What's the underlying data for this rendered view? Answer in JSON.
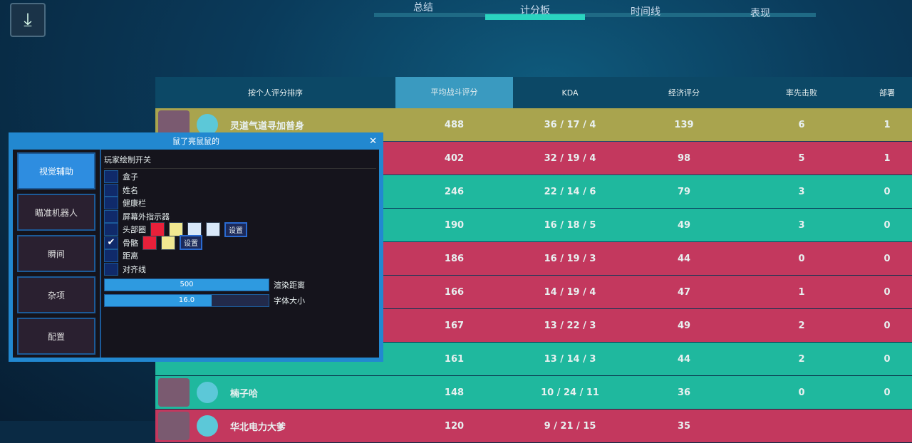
{
  "download_icon": "download-icon",
  "tabs": [
    {
      "label": "总结"
    },
    {
      "label": "计分板",
      "active": true
    },
    {
      "label": "时间线"
    },
    {
      "label": "表现"
    }
  ],
  "board": {
    "headers": [
      "按个人评分排序",
      "平均战斗评分",
      "KDA",
      "经济评分",
      "率先击败",
      "部署"
    ],
    "rows": [
      {
        "name": "灵道气道寻加普身",
        "acs": "488",
        "kda": "36 / 17 / 4",
        "econ": "139",
        "fk": "6",
        "plants": "1",
        "color": "yellow"
      },
      {
        "name": "",
        "acs": "402",
        "kda": "32 / 19 / 4",
        "econ": "98",
        "fk": "5",
        "plants": "1",
        "color": "red"
      },
      {
        "name": "",
        "acs": "246",
        "kda": "22 / 14 / 6",
        "econ": "79",
        "fk": "3",
        "plants": "0",
        "color": "teal"
      },
      {
        "name": "",
        "acs": "190",
        "kda": "16 / 18 / 5",
        "econ": "49",
        "fk": "3",
        "plants": "0",
        "color": "teal"
      },
      {
        "name": "",
        "acs": "186",
        "kda": "16 / 19 / 3",
        "econ": "44",
        "fk": "0",
        "plants": "0",
        "color": "red"
      },
      {
        "name": "",
        "acs": "166",
        "kda": "14 / 19 / 4",
        "econ": "47",
        "fk": "1",
        "plants": "0",
        "color": "red"
      },
      {
        "name": "",
        "acs": "167",
        "kda": "13 / 22 / 3",
        "econ": "49",
        "fk": "2",
        "plants": "0",
        "color": "red"
      },
      {
        "name": "",
        "acs": "161",
        "kda": "13 / 14 / 3",
        "econ": "44",
        "fk": "2",
        "plants": "0",
        "color": "teal"
      },
      {
        "name": "楠子哈",
        "acs": "148",
        "kda": "10 / 24 / 11",
        "econ": "36",
        "fk": "0",
        "plants": "0",
        "color": "teal"
      },
      {
        "name": "华北电力大爹",
        "acs": "120",
        "kda": "9 / 21 / 15",
        "econ": "35",
        "fk": "",
        "plants": "",
        "color": "red"
      }
    ]
  },
  "colors": {
    "yellow": "#a9a44e",
    "red": "#c3385e",
    "teal": "#1fb89e",
    "accent": "#2ad4c0",
    "menu": "#2288d0"
  },
  "menu": {
    "title": "鼠了亮鼠鼠的",
    "close": "✕",
    "side": [
      {
        "label": "视觉辅助",
        "active": true
      },
      {
        "label": "瞄准机器人"
      },
      {
        "label": "瞬间"
      },
      {
        "label": "杂项"
      },
      {
        "label": "配置"
      }
    ],
    "section": "玩家绘制开关",
    "items": [
      {
        "label": "盒子",
        "checked": false
      },
      {
        "label": "姓名",
        "checked": false
      },
      {
        "label": "健康栏",
        "checked": false
      },
      {
        "label": "屏幕外指示器",
        "checked": false
      },
      {
        "label": "头部圈",
        "checked": false,
        "swatches": [
          "#e8203a",
          "#f0e890",
          "#d8e8f8",
          "#d8e8f8"
        ],
        "button": "设置"
      },
      {
        "label": "骨骼",
        "checked": true,
        "swatches": [
          "#e8203a",
          "#f0e890"
        ],
        "button": "设置"
      },
      {
        "label": "距离",
        "checked": false
      },
      {
        "label": "对齐线",
        "checked": false
      }
    ],
    "sliders": [
      {
        "value": "500",
        "label": "渲染距离",
        "fraction": 1.0
      },
      {
        "value": "16.0",
        "label": "字体大小",
        "fraction": 0.65
      }
    ]
  }
}
